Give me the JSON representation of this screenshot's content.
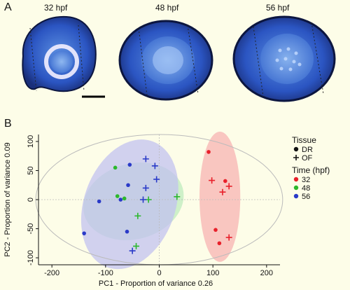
{
  "panel_a": {
    "letter": "A",
    "stages": [
      "32 hpf",
      "48 hpf",
      "56 hpf"
    ]
  },
  "panel_b": {
    "letter": "B"
  },
  "chart_data": {
    "type": "scatter",
    "xlabel": "PC1 - Proportion of variance 0.26",
    "ylabel": "PC2 - Proportion of variance 0.09",
    "xlim": [
      -225,
      225
    ],
    "ylim": [
      -112,
      112
    ],
    "xticks": [
      -200,
      -100,
      0,
      100,
      200
    ],
    "yticks": [
      -100,
      -50,
      0,
      50,
      100
    ],
    "legend": {
      "placement": "right",
      "tissue_title": "Tissue",
      "tissue_entries": [
        "DR",
        "OF"
      ],
      "time_title": "Time (hpf)",
      "time_entries": [
        {
          "label": "32",
          "color": "#e8202a"
        },
        {
          "label": "48",
          "color": "#2cb82c"
        },
        {
          "label": "56",
          "color": "#2a3ac8"
        }
      ]
    },
    "series": [
      {
        "name": "32",
        "color": "#e8202a",
        "DR": [
          [
            92,
            82
          ],
          [
            123,
            32
          ],
          [
            105,
            -52
          ],
          [
            112,
            -75
          ]
        ],
        "OF": [
          [
            98,
            33
          ],
          [
            130,
            23
          ],
          [
            118,
            13
          ],
          [
            130,
            -65
          ]
        ]
      },
      {
        "name": "48",
        "color": "#2cb82c",
        "DR": [
          [
            -82,
            55
          ],
          [
            -78,
            6
          ],
          [
            -65,
            2
          ]
        ],
        "OF": [
          [
            -20,
            0
          ],
          [
            33,
            5
          ],
          [
            -40,
            -28
          ],
          [
            -43,
            -80
          ]
        ]
      },
      {
        "name": "56",
        "color": "#2a3ac8",
        "DR": [
          [
            -55,
            60
          ],
          [
            -58,
            25
          ],
          [
            -72,
            0
          ],
          [
            -112,
            -3
          ],
          [
            -140,
            -58
          ],
          [
            -60,
            -55
          ]
        ],
        "OF": [
          [
            -25,
            70
          ],
          [
            -8,
            58
          ],
          [
            -25,
            20
          ],
          [
            -5,
            35
          ],
          [
            -30,
            0
          ],
          [
            -50,
            -88
          ]
        ]
      }
    ],
    "ellipses": [
      {
        "name": "32",
        "color": "#f7b3b3",
        "cx": 113,
        "cy": 5,
        "rx": 38,
        "ry": 112,
        "angle": 0
      },
      {
        "name": "48",
        "color": "#bdebbd",
        "cx": -48,
        "cy": -3,
        "rx": 95,
        "ry": 65,
        "angle": -15
      },
      {
        "name": "56",
        "color": "#c2c2f0",
        "cx": -55,
        "cy": -8,
        "rx": 85,
        "ry": 115,
        "angle": 20
      },
      {
        "name": "all",
        "color": "#bbbbbb",
        "cx": 0,
        "cy": 0,
        "rx": 230,
        "ry": 112,
        "angle": 0
      }
    ]
  }
}
